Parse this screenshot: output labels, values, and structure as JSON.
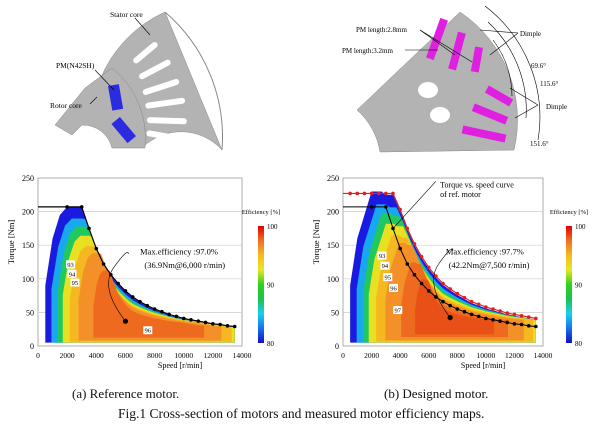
{
  "figure": {
    "caption": "Fig.1 Cross-section of motors and measured motor efficiency maps.",
    "sub_a": "(a) Reference motor.",
    "sub_b": "(b) Designed motor."
  },
  "cross_section_ref": {
    "labels": {
      "stator": "Stator core",
      "pm": "PM(N42SH)",
      "rotor": "Rotor core"
    },
    "colors": {
      "core": "#b3b3b3",
      "pm": "#2b2be0"
    }
  },
  "cross_section_designed": {
    "labels": {
      "pm28": "PM length:2.8mm",
      "pm32": "PM length:3.2mm",
      "dimple1": "Dimple",
      "dimple2": "Dimple",
      "a1": "69.6°",
      "a2": "115.6°",
      "a3": "151.6°"
    },
    "colors": {
      "core": "#b3b3b3",
      "pm": "#e020e0"
    }
  },
  "chart_data": [
    {
      "type": "heatmap",
      "title": "",
      "xlabel": "Speed [r/min]",
      "ylabel": "Torque [Nm]",
      "xlim": [
        0,
        14000
      ],
      "ylim": [
        0,
        250
      ],
      "xticks": [
        "0",
        "2000",
        "4000",
        "6000",
        "8000",
        "10000",
        "12000",
        "14000"
      ],
      "yticks": [
        "0",
        "50",
        "100",
        "150",
        "200",
        "250"
      ],
      "grid": true,
      "colorbar": {
        "label": "Efficiency [%]",
        "range": [
          80,
          100
        ],
        "ticks": [
          "80",
          "90",
          "100"
        ]
      },
      "contour_labels": [
        "93",
        "94",
        "95",
        "96"
      ],
      "torque_speed_curve": {
        "speed": [
          0,
          2000,
          3000,
          3500,
          4000,
          4500,
          5000,
          5500,
          6000,
          6500,
          7000,
          7500,
          8000,
          8500,
          9000,
          9500,
          10000,
          10500,
          11000,
          11500,
          12000,
          12500,
          13000,
          13500
        ],
        "torque": [
          207,
          207,
          207,
          175,
          145,
          122,
          106,
          93,
          82,
          73,
          66,
          60,
          55,
          51,
          47,
          44,
          41,
          39,
          37,
          35,
          33,
          32,
          30,
          29
        ]
      },
      "annotation": {
        "line1": "Max.efficiency :97.0%",
        "line2": "(36.9Nm@6,000 r/min)",
        "speed": 6000,
        "torque": 36.9,
        "efficiency": 97.0
      }
    },
    {
      "type": "heatmap",
      "title": "",
      "xlabel": "Speed [r/min]",
      "ylabel": "Torque [Nm]",
      "xlim": [
        0,
        14000
      ],
      "ylim": [
        0,
        250
      ],
      "xticks": [
        "0",
        "2000",
        "4000",
        "6000",
        "8000",
        "10000",
        "12000",
        "14000"
      ],
      "yticks": [
        "0",
        "50",
        "100",
        "150",
        "200",
        "250"
      ],
      "grid": true,
      "colorbar": {
        "label": "Efficiency [%]",
        "range": [
          80,
          100
        ],
        "ticks": [
          "80",
          "90",
          "100"
        ]
      },
      "contour_labels": [
        "93",
        "94",
        "95",
        "96",
        "97"
      ],
      "torque_speed_curve": {
        "speed": [
          0,
          500,
          1000,
          1500,
          2000,
          2500,
          3000,
          3500,
          4000,
          4500,
          5000,
          5500,
          6000,
          6500,
          7000,
          7500,
          8000,
          8500,
          9000,
          9500,
          10000,
          10500,
          11000,
          11500,
          12000,
          12500,
          13000,
          13500
        ],
        "torque": [
          227,
          227,
          227,
          227,
          227,
          227,
          227,
          227,
          203,
          175,
          152,
          133,
          117,
          104,
          93,
          85,
          78,
          72,
          66,
          62,
          58,
          55,
          52,
          49,
          47,
          45,
          43,
          41
        ]
      },
      "ref_curve": {
        "label_line1": "Torque vs. speed curve",
        "label_line2": "of ref. motor",
        "speed": [
          0,
          2000,
          3000,
          3500,
          4000,
          4500,
          5000,
          5500,
          6000,
          6500,
          7000,
          7500,
          8000,
          8500,
          9000,
          9500,
          10000,
          10500,
          11000,
          11500,
          12000,
          12500,
          13000,
          13500
        ],
        "torque": [
          207,
          207,
          207,
          175,
          145,
          122,
          106,
          93,
          82,
          73,
          66,
          60,
          55,
          51,
          47,
          44,
          41,
          39,
          37,
          35,
          33,
          32,
          30,
          29
        ]
      },
      "annotation": {
        "line1": "Max.efficiency :97.7%",
        "line2": "(42.2Nm@7,500 r/min)",
        "speed": 7500,
        "torque": 42.2,
        "efficiency": 97.7
      }
    }
  ]
}
